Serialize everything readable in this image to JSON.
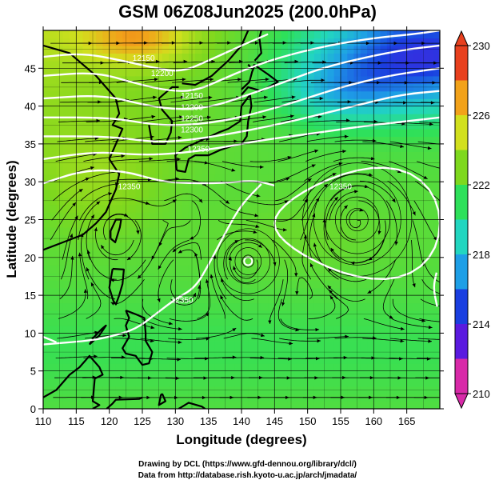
{
  "title": "GSM 06Z08Jun2025 (200.0hPa)",
  "x_axis": {
    "label": "Longitude (degrees)",
    "ticks": [
      "110",
      "115",
      "120",
      "125",
      "130",
      "135",
      "140",
      "145",
      "150",
      "155",
      "160",
      "165"
    ],
    "range": [
      110,
      170
    ]
  },
  "y_axis": {
    "label": "Latitude  (degrees)",
    "ticks": [
      "0",
      "5",
      "10",
      "15",
      "20",
      "25",
      "30",
      "35",
      "40",
      "45"
    ],
    "range": [
      0,
      50
    ]
  },
  "colorbar": {
    "ticks": [
      "230",
      "226",
      "222",
      "218",
      "214",
      "210"
    ],
    "range": [
      210,
      230
    ],
    "colors": [
      "#d82aa8",
      "#5a1adf",
      "#1a3fe0",
      "#1e9fe6",
      "#22d6c0",
      "#2ee05a",
      "#7ed81e",
      "#d2e01e",
      "#f2a21a",
      "#e8401e"
    ]
  },
  "contour_labels": [
    {
      "text": "12150",
      "lon": 125.2,
      "lat": 46.0
    },
    {
      "text": "12200",
      "lon": 128.0,
      "lat": 44.0
    },
    {
      "text": "12150",
      "lon": 132.5,
      "lat": 41.0
    },
    {
      "text": "12200",
      "lon": 132.5,
      "lat": 39.5
    },
    {
      "text": "12250",
      "lon": 132.5,
      "lat": 38.0
    },
    {
      "text": "12300",
      "lon": 132.5,
      "lat": 36.5
    },
    {
      "text": "12350",
      "lon": 133.5,
      "lat": 34.0
    },
    {
      "text": "12350",
      "lon": 131.0,
      "lat": 14.0
    },
    {
      "text": "12350",
      "lon": 123.0,
      "lat": 29.0
    },
    {
      "text": "12350",
      "lon": 155.0,
      "lat": 29.0
    }
  ],
  "credits": [
    "Drawing by DCL (https://www.gfd-dennou.org/library/dcl/)",
    "Data from http://database.rish.kyoto-u.ac.jp/arch/jmadata/"
  ],
  "colors": {
    "contour": "#ffffff",
    "grid": "#000000",
    "streamline": "#000000"
  }
}
